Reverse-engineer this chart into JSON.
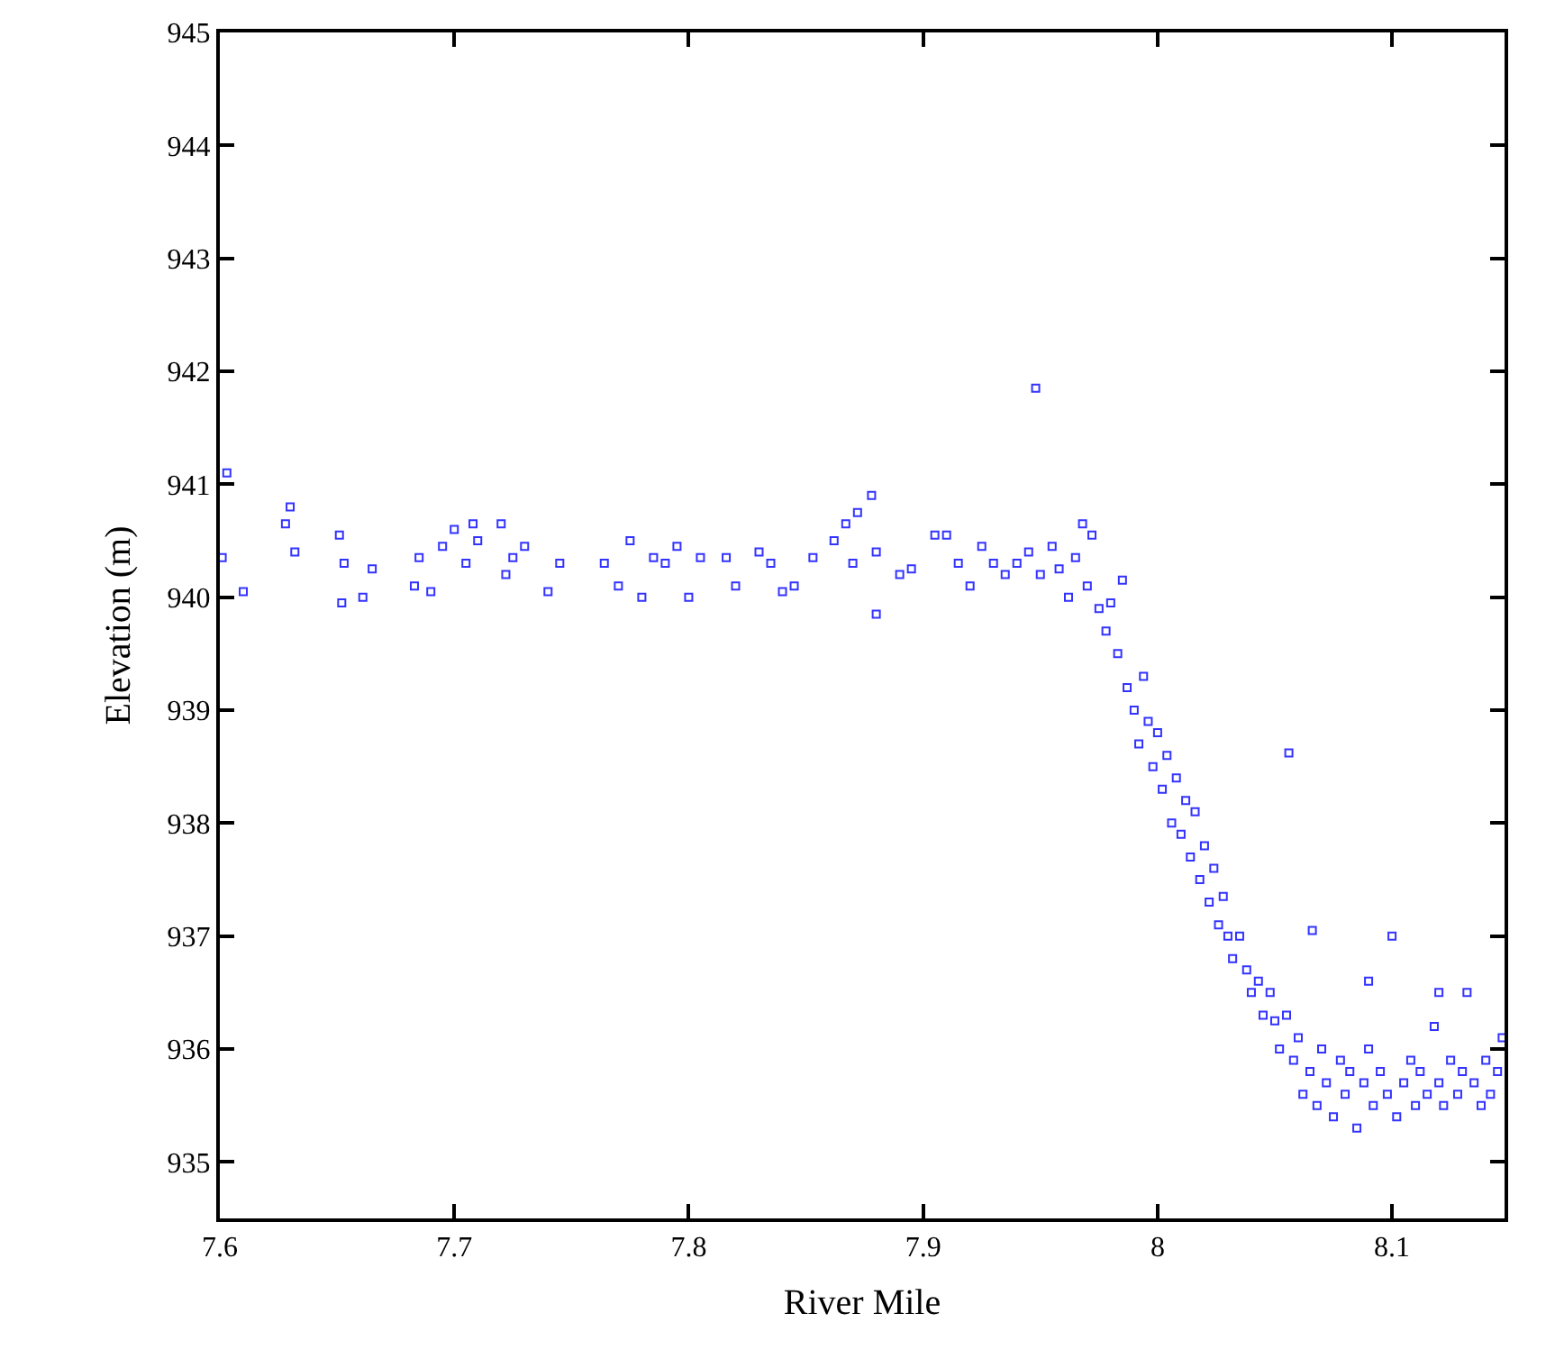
{
  "chart_data": {
    "type": "scatter",
    "xlabel": "River Mile",
    "ylabel": "Elevation (m)",
    "xlim": [
      7.6,
      8.148
    ],
    "ylim": [
      934.5,
      945
    ],
    "xticks": [
      7.6,
      7.7,
      7.8,
      7.9,
      8,
      8.1
    ],
    "yticks": [
      935,
      936,
      937,
      938,
      939,
      940,
      941,
      942,
      943,
      944,
      945
    ],
    "marker": "square",
    "series": [
      {
        "color": "#3333ff",
        "x": [
          7.601,
          7.603,
          7.61,
          7.628,
          7.63,
          7.632,
          7.651,
          7.652,
          7.653,
          7.661,
          7.665,
          7.683,
          7.685,
          7.69,
          7.695,
          7.7,
          7.705,
          7.708,
          7.71,
          7.72,
          7.722,
          7.725,
          7.73,
          7.74,
          7.745,
          7.764,
          7.77,
          7.775,
          7.78,
          7.785,
          7.79,
          7.795,
          7.8,
          7.805,
          7.816,
          7.82,
          7.83,
          7.835,
          7.84,
          7.845,
          7.853,
          7.862,
          7.867,
          7.87,
          7.872,
          7.878,
          7.88,
          7.88,
          7.89,
          7.895,
          7.905,
          7.91,
          7.915,
          7.92,
          7.925,
          7.93,
          7.935,
          7.94,
          7.945,
          7.948,
          7.95,
          7.955,
          7.958,
          7.962,
          7.965,
          7.968,
          7.97,
          7.972,
          7.975,
          7.978,
          7.98,
          7.983,
          7.985,
          7.987,
          7.99,
          7.992,
          7.994,
          7.996,
          7.998,
          8.0,
          8.002,
          8.004,
          8.006,
          8.008,
          8.01,
          8.012,
          8.014,
          8.016,
          8.018,
          8.02,
          8.022,
          8.024,
          8.026,
          8.028,
          8.03,
          8.032,
          8.035,
          8.038,
          8.04,
          8.043,
          8.045,
          8.048,
          8.05,
          8.052,
          8.055,
          8.056,
          8.058,
          8.06,
          8.062,
          8.065,
          8.066,
          8.068,
          8.07,
          8.072,
          8.075,
          8.078,
          8.08,
          8.082,
          8.085,
          8.088,
          8.09,
          8.092,
          8.095,
          8.098,
          8.1,
          8.102,
          8.105,
          8.108,
          8.11,
          8.112,
          8.115,
          8.118,
          8.12,
          8.122,
          8.125,
          8.128,
          8.13,
          8.132,
          8.135,
          8.138,
          8.14,
          8.142,
          8.145,
          8.147,
          8.12,
          8.09
        ],
        "values": [
          940.35,
          941.1,
          940.05,
          940.65,
          940.8,
          940.4,
          940.55,
          939.95,
          940.3,
          940.0,
          940.25,
          940.1,
          940.35,
          940.05,
          940.45,
          940.6,
          940.3,
          940.65,
          940.5,
          940.65,
          940.2,
          940.35,
          940.45,
          940.05,
          940.3,
          940.3,
          940.1,
          940.5,
          940.0,
          940.35,
          940.3,
          940.45,
          940.0,
          940.35,
          940.35,
          940.1,
          940.4,
          940.3,
          940.05,
          940.1,
          940.35,
          940.5,
          940.65,
          940.3,
          940.75,
          940.9,
          940.4,
          939.85,
          940.2,
          940.25,
          940.55,
          940.55,
          940.3,
          940.1,
          940.45,
          940.3,
          940.2,
          940.3,
          940.4,
          941.85,
          940.2,
          940.45,
          940.25,
          940.0,
          940.35,
          940.65,
          940.1,
          940.55,
          939.9,
          939.7,
          939.95,
          939.5,
          940.15,
          939.2,
          939.0,
          938.7,
          939.3,
          938.9,
          938.5,
          938.8,
          938.3,
          938.6,
          938.0,
          938.4,
          937.9,
          938.2,
          937.7,
          938.1,
          937.5,
          937.8,
          937.3,
          937.6,
          937.1,
          937.35,
          937.0,
          936.8,
          937.0,
          936.7,
          936.5,
          936.6,
          936.3,
          936.5,
          936.25,
          936.0,
          936.3,
          938.62,
          935.9,
          936.1,
          935.6,
          935.8,
          937.05,
          935.5,
          936.0,
          935.7,
          935.4,
          935.9,
          935.6,
          935.8,
          935.3,
          935.7,
          936.0,
          935.5,
          935.8,
          935.6,
          937.0,
          935.4,
          935.7,
          935.9,
          935.5,
          935.8,
          935.6,
          936.2,
          935.7,
          935.5,
          935.9,
          935.6,
          935.8,
          936.5,
          935.7,
          935.5,
          935.9,
          935.6,
          935.8,
          936.1,
          936.5,
          936.6
        ]
      }
    ]
  }
}
